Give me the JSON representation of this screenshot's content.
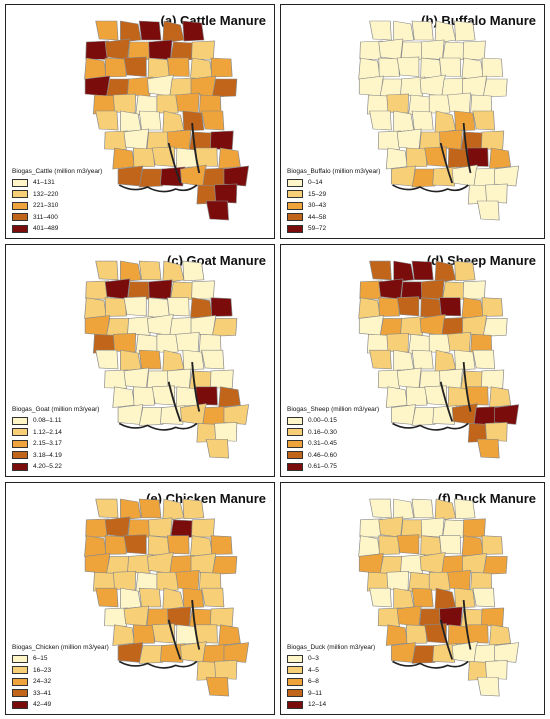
{
  "panels": [
    {
      "id": "cattle",
      "title": "(a) Cattle Manure",
      "legend_title": "Biogas_Cattle (million m3/year)",
      "classes": [
        "41–131",
        "132–220",
        "221–310",
        "311–400",
        "401–489"
      ],
      "colors": [
        "#fef6c9",
        "#f7cf76",
        "#eea43a",
        "#c0651a",
        "#7a0c0c"
      ],
      "pattern": [
        2,
        3,
        4,
        3,
        4,
        4,
        3,
        2,
        4,
        3,
        1,
        2,
        2,
        3,
        1,
        2,
        1,
        2,
        4,
        3,
        2,
        0,
        1,
        2,
        3,
        2,
        1,
        0,
        1,
        2,
        2,
        1,
        0,
        0,
        1,
        3,
        2,
        1,
        0,
        1,
        2,
        3,
        4,
        2,
        1,
        1,
        0,
        1,
        2,
        3,
        3,
        4
      ]
    },
    {
      "id": "buffalo",
      "title": "(b) Buffalo Manure",
      "legend_title": "Biogas_Buffalo (million m3/year)",
      "classes": [
        "0–14",
        "15–29",
        "30–43",
        "44–58",
        "59–72"
      ],
      "colors": [
        "#fef6c9",
        "#f7cf76",
        "#eea43a",
        "#c0651a",
        "#7a0c0c"
      ],
      "pattern": [
        0,
        0,
        0,
        0,
        0,
        0,
        0,
        0,
        0,
        0,
        0,
        0,
        0,
        0,
        0,
        0,
        0,
        0,
        0,
        0,
        0,
        0,
        0,
        0,
        0,
        0,
        1,
        0,
        0,
        0,
        0,
        0,
        0,
        0,
        1,
        2,
        1,
        0,
        0,
        1,
        2,
        3,
        1,
        0,
        1,
        2,
        3,
        4,
        2,
        1,
        2,
        1
      ]
    },
    {
      "id": "goat",
      "title": "(c) Goat Manure",
      "legend_title": "Biogas_Goat (million m3/year)",
      "classes": [
        "0.08–1.11",
        "1.12–2.14",
        "2.15–3.17",
        "3.18–4.19",
        "4.20–5.22"
      ],
      "colors": [
        "#fef6c9",
        "#f7cf76",
        "#eea43a",
        "#c0651a",
        "#7a0c0c"
      ],
      "pattern": [
        1,
        2,
        1,
        1,
        0,
        1,
        4,
        3,
        4,
        1,
        0,
        1,
        1,
        0,
        0,
        0,
        3,
        4,
        2,
        1,
        0,
        0,
        0,
        0,
        1,
        3,
        2,
        0,
        0,
        0,
        0,
        0,
        1,
        2,
        1,
        0,
        0,
        0,
        0,
        0,
        0,
        1,
        0,
        0,
        0,
        0,
        0,
        4,
        3,
        0,
        0,
        0
      ]
    },
    {
      "id": "sheep",
      "title": "(d) Sheep Manure",
      "legend_title": "Biogas_Sheep (million m3/year)",
      "classes": [
        "0.00–0.15",
        "0.16–0.30",
        "0.31–0.45",
        "0.46–0.60",
        "0.61–0.75"
      ],
      "colors": [
        "#fef6c9",
        "#f7cf76",
        "#eea43a",
        "#c0651a",
        "#7a0c0c"
      ],
      "pattern": [
        3,
        4,
        4,
        3,
        1,
        2,
        4,
        4,
        3,
        1,
        0,
        1,
        2,
        3,
        3,
        4,
        2,
        1,
        0,
        2,
        1,
        2,
        3,
        1,
        0,
        0,
        1,
        0,
        0,
        1,
        2,
        1,
        0,
        0,
        1,
        0,
        0,
        0,
        0,
        0,
        0,
        1,
        0,
        0,
        0,
        0,
        1,
        2,
        1,
        0,
        0,
        0
      ]
    },
    {
      "id": "chicken",
      "title": "(e) Chicken Manure",
      "legend_title": "Biogas_Chicken (million m3/year)",
      "classes": [
        "6–15",
        "16–23",
        "24–32",
        "33–41",
        "42–49"
      ],
      "colors": [
        "#fef6c9",
        "#f7cf76",
        "#eea43a",
        "#c0651a",
        "#7a0c0c"
      ],
      "pattern": [
        1,
        2,
        2,
        1,
        1,
        2,
        3,
        2,
        1,
        4,
        1,
        2,
        2,
        3,
        1,
        2,
        1,
        2,
        2,
        1,
        1,
        1,
        2,
        1,
        2,
        1,
        1,
        0,
        1,
        2,
        1,
        2,
        0,
        1,
        1,
        2,
        1,
        0,
        1,
        2,
        3,
        2,
        1,
        1,
        2,
        1,
        0,
        1,
        2,
        3,
        1,
        2
      ]
    },
    {
      "id": "duck",
      "title": "(f) Duck Manure",
      "legend_title": "Biogas_Duck (million m3/year)",
      "classes": [
        "0–3",
        "4–5",
        "6–8",
        "9–11",
        "12–14"
      ],
      "colors": [
        "#fef6c9",
        "#f7cf76",
        "#eea43a",
        "#c0651a",
        "#7a0c0c"
      ],
      "pattern": [
        0,
        0,
        0,
        1,
        0,
        0,
        1,
        1,
        0,
        0,
        2,
        0,
        1,
        2,
        1,
        0,
        2,
        1,
        2,
        1,
        0,
        1,
        2,
        1,
        2,
        1,
        0,
        1,
        1,
        2,
        1,
        0,
        1,
        2,
        3,
        1,
        0,
        1,
        2,
        3,
        4,
        1,
        2,
        2,
        1,
        3,
        2,
        2,
        1,
        2,
        3,
        1
      ]
    }
  ]
}
